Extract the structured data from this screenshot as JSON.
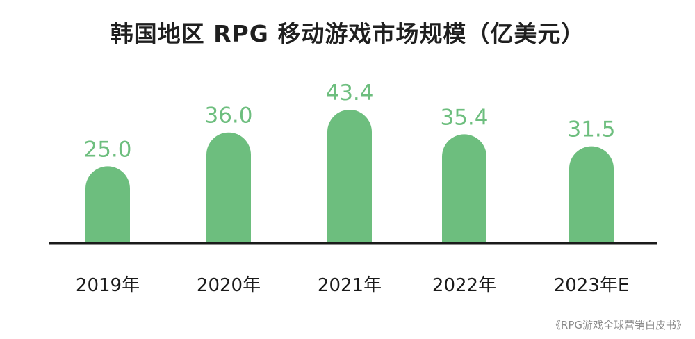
{
  "chart_data": {
    "type": "bar",
    "title": "韩国地区 RPG 移动游戏市场规模（亿美元）",
    "categories": [
      "2019年",
      "2020年",
      "2021年",
      "2022年",
      "2023年E"
    ],
    "values": [
      25.0,
      36.0,
      43.4,
      35.4,
      31.5
    ],
    "value_labels": [
      "25.0",
      "36.0",
      "43.4",
      "35.4",
      "31.5"
    ],
    "xlabel": "",
    "ylabel": "",
    "ylim": [
      0,
      43.4
    ],
    "grid": false,
    "legend": "none",
    "bar_shape": "rounded-top",
    "colors": {
      "bar": "#6DBE7E",
      "value_label": "#6DBE7E",
      "axis": "#1a1a1a",
      "category_label": "#1a1a1a"
    }
  },
  "source": "《RPG游戏全球营销白皮书》"
}
